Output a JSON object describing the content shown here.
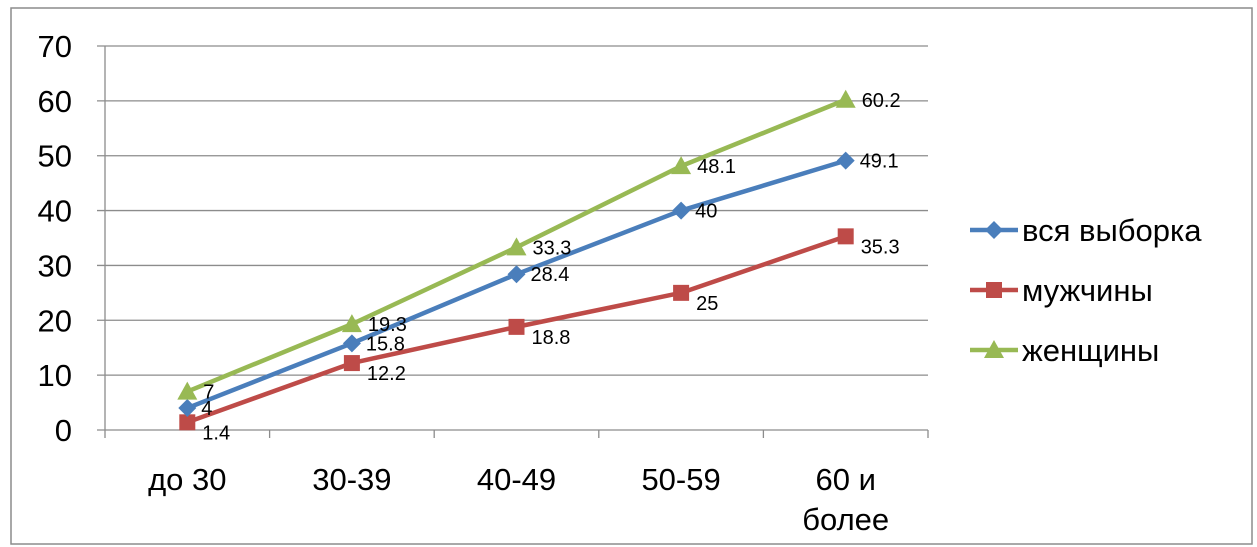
{
  "chart_data": {
    "type": "line",
    "categories": [
      [
        "до 30"
      ],
      [
        "30-39"
      ],
      [
        "40-49"
      ],
      [
        "50-59"
      ],
      [
        "60 и",
        "более"
      ]
    ],
    "series": [
      {
        "name": "вся выборка",
        "values": [
          4,
          15.8,
          28.4,
          40,
          49.1
        ],
        "labels": [
          "4",
          "15.8",
          "28.4",
          "40",
          "49.1"
        ],
        "color": "#4a7ebb",
        "marker": "diamond"
      },
      {
        "name": "мужчины",
        "values": [
          1.4,
          12.2,
          18.8,
          25,
          35.3
        ],
        "labels": [
          "1.4",
          "12.2",
          "18.8",
          "25",
          "35.3"
        ],
        "color": "#be4b48",
        "marker": "square"
      },
      {
        "name": "женщины",
        "values": [
          7,
          19.3,
          33.3,
          48.1,
          60.2
        ],
        "labels": [
          "7",
          "19.3",
          "33.3",
          "48.1",
          "60.2"
        ],
        "color": "#98b954",
        "marker": "triangle"
      }
    ],
    "yticks": [
      "0",
      "10",
      "20",
      "30",
      "40",
      "50",
      "60",
      "70"
    ],
    "ylim": [
      0,
      70
    ],
    "grid": true,
    "legend": "right",
    "title": "",
    "xlabel": "",
    "ylabel": ""
  }
}
